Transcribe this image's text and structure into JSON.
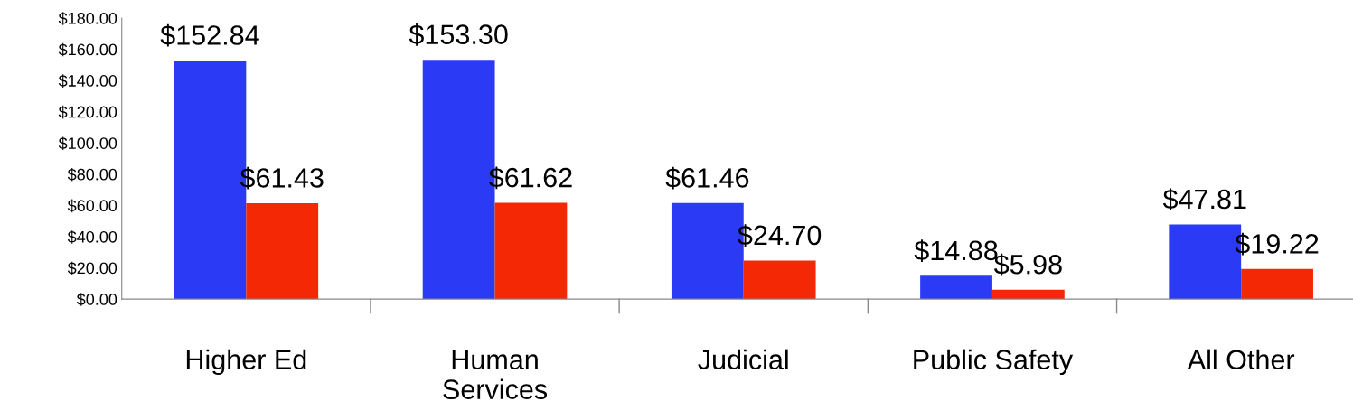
{
  "chart_data": {
    "type": "bar",
    "categories": [
      "Higher Ed",
      "Human\nServices",
      "Judicial",
      "Public Safety",
      "All Other"
    ],
    "series": [
      {
        "color": "#2b3af5",
        "values": [
          152.84,
          153.3,
          61.46,
          14.88,
          47.81
        ],
        "value_labels": [
          "$152.84",
          "$153.30",
          "$61.46",
          "$14.88",
          "$47.81"
        ]
      },
      {
        "color": "#f52805",
        "values": [
          61.43,
          61.62,
          24.7,
          5.98,
          19.22
        ],
        "value_labels": [
          "$61.43",
          "$61.62",
          "$24.70",
          "$5.98",
          "$19.22"
        ]
      }
    ],
    "ylim": [
      0,
      180
    ],
    "yticks": [
      {
        "value": 0,
        "label": "$0.00"
      },
      {
        "value": 20,
        "label": "$20.00"
      },
      {
        "value": 40,
        "label": "$40.00"
      },
      {
        "value": 60,
        "label": "$60.00"
      },
      {
        "value": 80,
        "label": "$80.00"
      },
      {
        "value": 100,
        "label": "$100.00"
      },
      {
        "value": 120,
        "label": "$120.00"
      },
      {
        "value": 140,
        "label": "$140.00"
      },
      {
        "value": 160,
        "label": "$160.00"
      },
      {
        "value": 180,
        "label": "$180.00"
      }
    ],
    "grid": false,
    "legend": false
  }
}
